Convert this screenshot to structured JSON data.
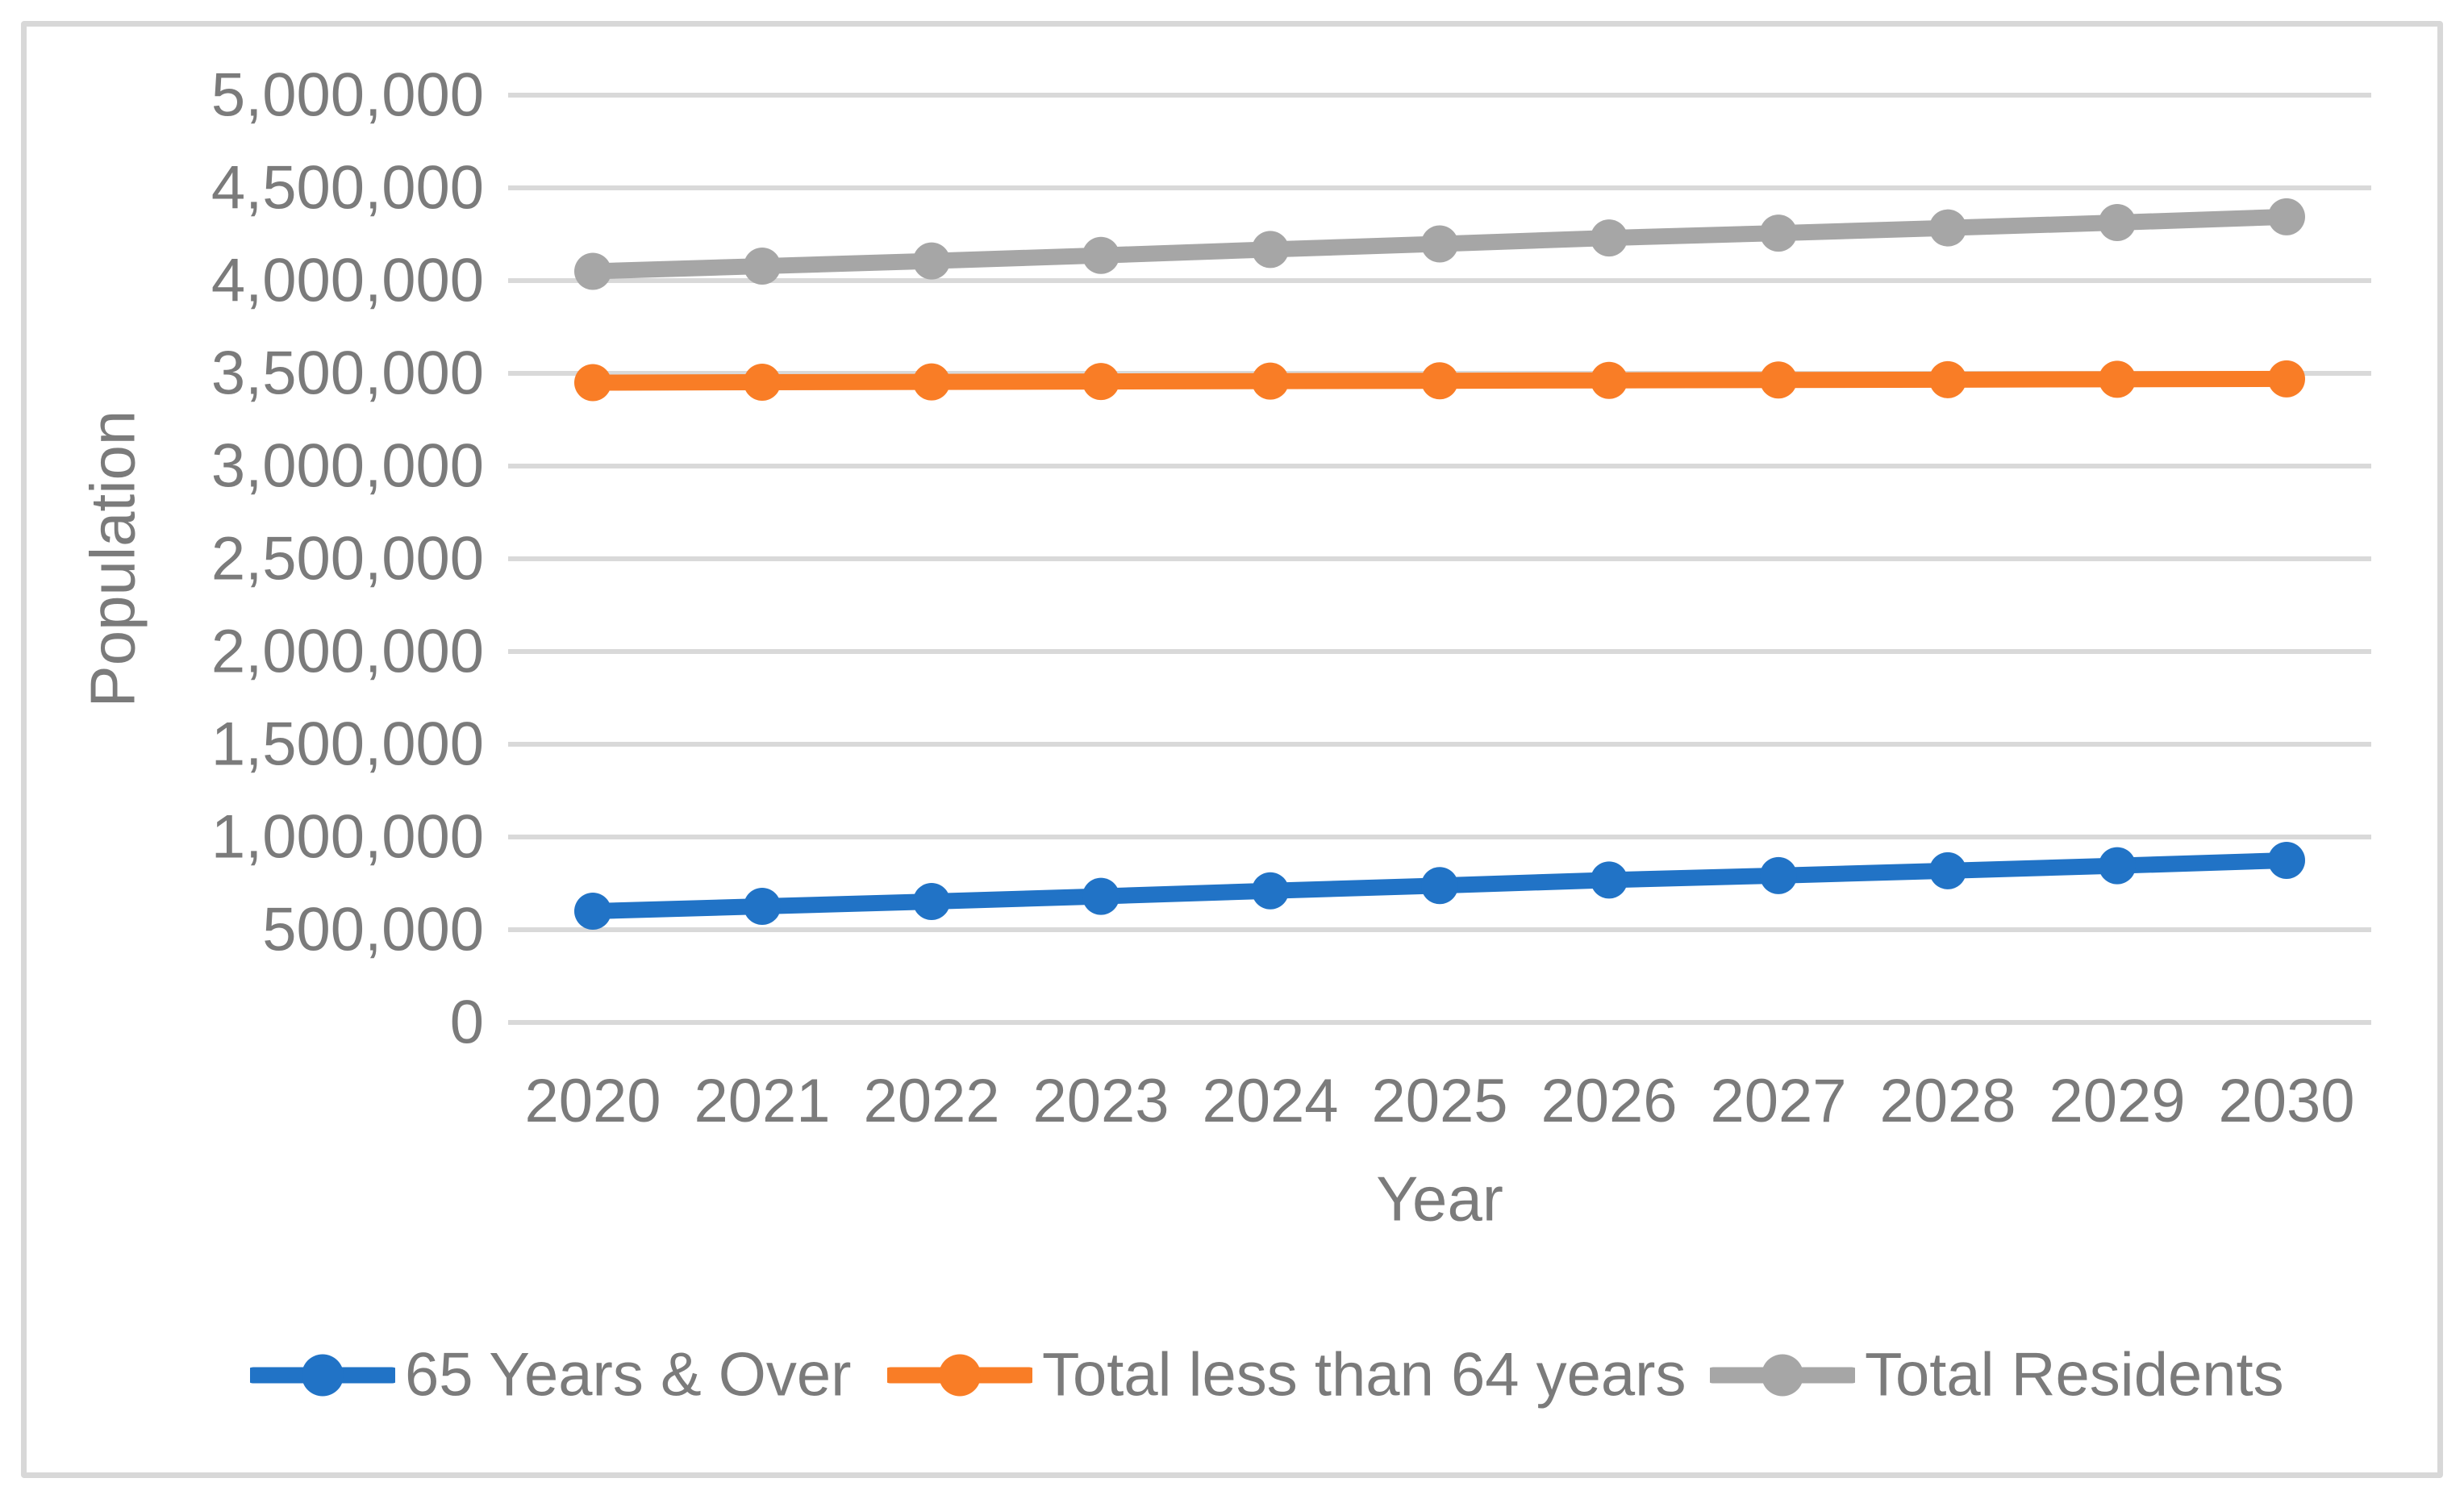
{
  "chart_data": {
    "type": "line",
    "xlabel": "Year",
    "ylabel": "Population",
    "categories": [
      "2020",
      "2021",
      "2022",
      "2023",
      "2024",
      "2025",
      "2026",
      "2027",
      "2028",
      "2029",
      "2030"
    ],
    "series": [
      {
        "name": "65 Years & Over",
        "color": "#2173c6",
        "values": [
          600000,
          626000,
          652000,
          680000,
          710000,
          738000,
          768000,
          792000,
          818000,
          845000,
          874000
        ]
      },
      {
        "name": "Total less than 64 years",
        "color": "#f97d26",
        "values": [
          3450000,
          3452000,
          3454000,
          3456000,
          3458000,
          3460000,
          3462000,
          3464000,
          3466000,
          3468000,
          3470000
        ]
      },
      {
        "name": "Total Residents",
        "color": "#a6a6a6",
        "values": [
          4050000,
          4078000,
          4106000,
          4136000,
          4168000,
          4198000,
          4230000,
          4256000,
          4284000,
          4313000,
          4344000
        ]
      }
    ],
    "ylim": [
      0,
      5000000
    ],
    "ytick_step": 500000,
    "ytick_labels": [
      "0",
      "500,000",
      "1,000,000",
      "1,500,000",
      "2,000,000",
      "2,500,000",
      "3,000,000",
      "3,500,000",
      "4,000,000",
      "4,500,000",
      "5,000,000"
    ],
    "grid": "horizontal",
    "legend_position": "bottom",
    "gridline_color": "#d9d9d9",
    "text_color": "#7b7b7b",
    "frame_color": "#d8d8d8"
  }
}
